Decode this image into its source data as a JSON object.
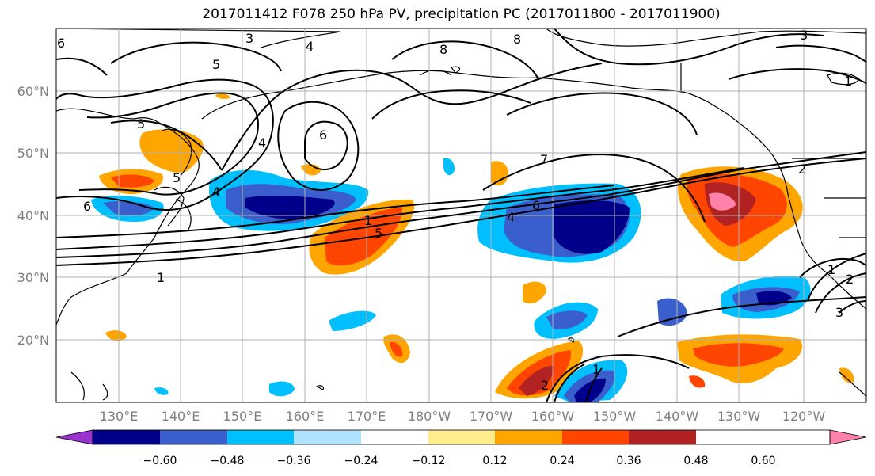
{
  "title": "2017011412 F078 250 hPa PV, precipitation PC (2017011800 - 2017011900)",
  "lat_labels": [
    "60°N",
    "50°N",
    "40°N",
    "30°N",
    "20°N"
  ],
  "lon_labels": [
    "130°E",
    "140°E",
    "150°E",
    "160°E",
    "170°E",
    "180°W",
    "170°W",
    "160°W",
    "150°W",
    "140°W",
    "130°W",
    "120°W"
  ],
  "colorbar": {
    "ticks": [
      "−0.60",
      "−0.48",
      "−0.36",
      "−0.24",
      "−0.12",
      "0.12",
      "0.24",
      "0.36",
      "0.48",
      "0.60"
    ],
    "colors": [
      "#9a32cd",
      "#00008b",
      "#3a5fcd",
      "#00bfff",
      "#b0e2ff",
      "#ffffff",
      "#ffec8b",
      "#ffa500",
      "#ff4500",
      "#b22222",
      "#ff82ab"
    ]
  },
  "contour_labels": [
    "3",
    "5",
    "4",
    "8",
    "8",
    "5",
    "6",
    "7",
    "1",
    "6",
    "4",
    "5",
    "4",
    "1",
    "3",
    "1",
    "2",
    "3",
    "1",
    "2",
    "1",
    "2",
    "6",
    "4",
    "5",
    "6"
  ]
}
